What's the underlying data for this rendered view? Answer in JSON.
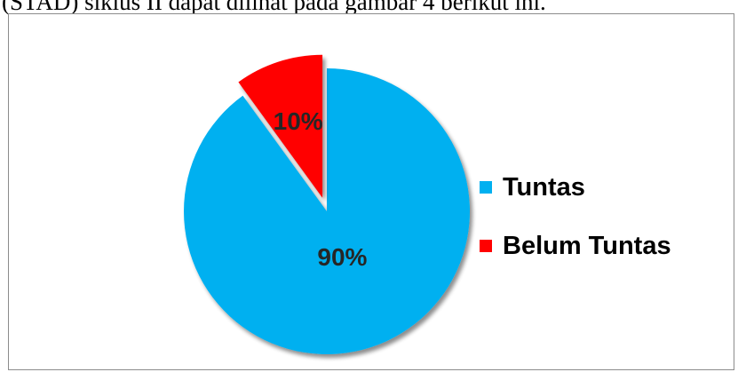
{
  "caption": "(STAD) siklus II dapat dilihat pada gambar 4 berikut ini.",
  "chart_data": {
    "type": "pie",
    "title": "",
    "categories": [
      "Tuntas",
      "Belum Tuntas"
    ],
    "values": [
      90,
      10
    ],
    "value_labels": [
      "90%",
      "10%"
    ],
    "colors": [
      "#00B0F0",
      "#FF0000"
    ],
    "exploded": [
      false,
      true
    ],
    "start_angle_deg": 0,
    "direction": "clockwise",
    "legend_position": "right"
  }
}
